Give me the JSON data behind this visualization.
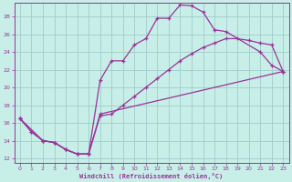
{
  "bg_color": "#c8eee8",
  "grid_color": "#a0cccc",
  "line_color": "#993399",
  "xlabel": "Windchill (Refroidissement éolien,°C)",
  "xlim": [
    -0.5,
    23.5
  ],
  "ylim": [
    11.5,
    29.5
  ],
  "yticks": [
    12,
    14,
    16,
    18,
    20,
    22,
    24,
    26,
    28
  ],
  "xticks": [
    0,
    1,
    2,
    3,
    4,
    5,
    6,
    7,
    8,
    9,
    10,
    11,
    12,
    13,
    14,
    15,
    16,
    17,
    18,
    19,
    20,
    21,
    22,
    23
  ],
  "line1_x": [
    0,
    1,
    2,
    3,
    4,
    5,
    6,
    7,
    8,
    9,
    10,
    11,
    12,
    13,
    14,
    15,
    16,
    17,
    18,
    21,
    22,
    23
  ],
  "line1_y": [
    16.5,
    15.0,
    14.0,
    13.8,
    13.0,
    12.5,
    12.5,
    20.8,
    23.0,
    23.0,
    24.8,
    25.5,
    27.8,
    27.8,
    29.3,
    29.2,
    28.5,
    26.5,
    26.3,
    24.0,
    22.5,
    21.8
  ],
  "line2_x": [
    0,
    1,
    2,
    3,
    4,
    5,
    6,
    7,
    8,
    9,
    10,
    11,
    12,
    13,
    14,
    15,
    16,
    17,
    18,
    19,
    20,
    21,
    22,
    23
  ],
  "line2_y": [
    16.5,
    15.0,
    14.0,
    13.8,
    13.0,
    12.5,
    12.5,
    16.8,
    17.0,
    18.0,
    19.0,
    20.0,
    21.0,
    22.0,
    23.0,
    23.8,
    24.5,
    25.0,
    25.5,
    25.5,
    25.3,
    25.0,
    24.8,
    21.8
  ],
  "line3_x": [
    0,
    2,
    3,
    4,
    5,
    6,
    7,
    23
  ],
  "line3_y": [
    16.5,
    14.0,
    13.8,
    13.0,
    12.5,
    12.5,
    17.0,
    21.8
  ]
}
